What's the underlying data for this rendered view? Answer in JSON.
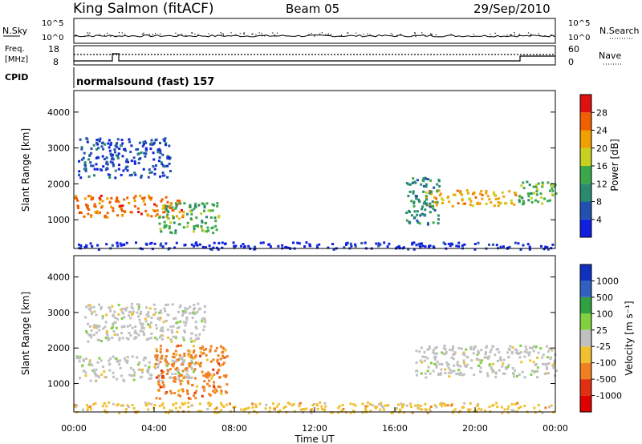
{
  "header": {
    "station": "King Salmon (fitACF)",
    "beam": "Beam 05",
    "date": "29/Sep/2010"
  },
  "strip_labels": {
    "nsky": "N.Sky",
    "nsearch": "N.Search",
    "freq_line1": "Freq.",
    "freq_line2": "[MHz]",
    "nave": "Nave",
    "cpid": "CPID",
    "cpid_value": "normalsound (fast) 157"
  },
  "strip_ticks": {
    "noise_left": [
      "10^5",
      "10^0"
    ],
    "noise_right": [
      "10^5",
      "10^0"
    ],
    "freq_left": [
      "18",
      "8"
    ],
    "nave_right": [
      "60",
      "0"
    ]
  },
  "colors": {
    "power_scale": [
      "#1020e0",
      "#2050b0",
      "#2a8a70",
      "#3aa84a",
      "#c8d020",
      "#f0a000",
      "#f06000",
      "#e01010"
    ],
    "velocity_scale": [
      "#1030c0",
      "#3060c0",
      "#30a040",
      "#80d040",
      "#c0c0c0",
      "#f0c030",
      "#f08020",
      "#e03010",
      "#e00000"
    ]
  },
  "chart_data": [
    {
      "type": "heatmap",
      "panel": "power",
      "ylabel": "Slant Range [km]",
      "xlim": [
        "00:00",
        "24:00"
      ],
      "ylim": [
        200,
        4600
      ],
      "y_ticks": [
        "1000",
        "2000",
        "3000",
        "4000"
      ],
      "colorbar_label": "Power [dB]",
      "colorbar_ticks": [
        "4",
        "8",
        "12",
        "16",
        "20",
        "24",
        "28"
      ],
      "regions": [
        {
          "t0": 0.0,
          "t1": 5.5,
          "r0": 1100,
          "r1": 1700,
          "value_db": 26
        },
        {
          "t0": 4.2,
          "t1": 7.2,
          "r0": 650,
          "r1": 1500,
          "value_db": 14
        },
        {
          "t0": 0.2,
          "t1": 4.8,
          "r0": 2200,
          "r1": 3300,
          "value_db": 8
        },
        {
          "t0": 17.5,
          "t1": 22.0,
          "r0": 1400,
          "r1": 1850,
          "value_db": 22
        },
        {
          "t0": 16.5,
          "t1": 18.2,
          "r0": 900,
          "r1": 2200,
          "value_db": 12
        },
        {
          "t0": 22.0,
          "t1": 24.0,
          "r0": 1450,
          "r1": 2100,
          "value_db": 16
        },
        {
          "t0": 0.0,
          "t1": 24.0,
          "r0": 200,
          "r1": 400,
          "value_db": 4
        }
      ]
    },
    {
      "type": "heatmap",
      "panel": "velocity",
      "ylabel": "Slant Range [km]",
      "xlabel": "Time UT",
      "xlim": [
        "00:00",
        "24:00"
      ],
      "ylim": [
        200,
        4600
      ],
      "x_ticks": [
        "00:00",
        "04:00",
        "08:00",
        "12:00",
        "16:00",
        "20:00",
        "00:00"
      ],
      "y_ticks": [
        "1000",
        "2000",
        "3000",
        "4000"
      ],
      "colorbar_label": "Velocity [m s⁻¹]",
      "colorbar_ticks": [
        "1000",
        "500",
        "100",
        "25",
        "-25",
        "-100",
        "-500",
        "-1000"
      ],
      "regions": [
        {
          "t0": 0.0,
          "t1": 6.0,
          "r0": 1100,
          "r1": 1800,
          "value_ms": 0
        },
        {
          "t0": 4.0,
          "t1": 7.6,
          "r0": 600,
          "r1": 2100,
          "value_ms": -150
        },
        {
          "t0": 17.0,
          "t1": 24.0,
          "r0": 1200,
          "r1": 2100,
          "value_ms": 0
        },
        {
          "t0": 0.5,
          "t1": 6.5,
          "r0": 2200,
          "r1": 3300,
          "value_ms": 0
        },
        {
          "t0": 0.0,
          "t1": 24.0,
          "r0": 200,
          "r1": 500,
          "value_ms": -100
        }
      ]
    }
  ]
}
